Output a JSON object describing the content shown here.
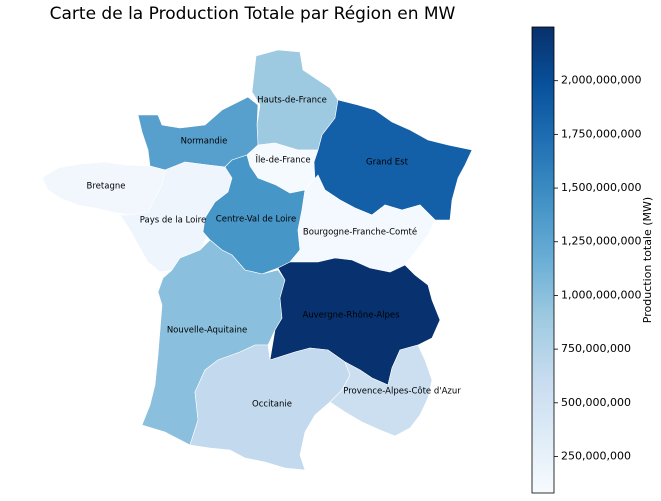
{
  "title": "Carte de la Production Totale par Région en MW",
  "colorbar": {
    "label": "Production totale (MW)",
    "min": 80000000,
    "max": 2250000000,
    "colormap": "Blues",
    "ticks": [
      {
        "value": 250000000,
        "label": "250,000,000"
      },
      {
        "value": 500000000,
        "label": "500,000,000"
      },
      {
        "value": 750000000,
        "label": "750,000,000"
      },
      {
        "value": 1000000000,
        "label": "1,000,000,000"
      },
      {
        "value": 1250000000,
        "label": "1,250,000,000"
      },
      {
        "value": 1500000000,
        "label": "1,500,000,000"
      },
      {
        "value": 1750000000,
        "label": "1,750,000,000"
      },
      {
        "value": 2000000000,
        "label": "2,000,000,000"
      }
    ]
  },
  "regions": [
    {
      "id": "hauts-de-france",
      "label": "Hauts-de-France",
      "value": 900000000
    },
    {
      "id": "normandie",
      "label": "Normandie",
      "value": 1300000000
    },
    {
      "id": "ile-de-france",
      "label": "Île-de-France",
      "value": 100000000
    },
    {
      "id": "grand-est",
      "label": "Grand Est",
      "value": 1850000000
    },
    {
      "id": "bretagne",
      "label": "Bretagne",
      "value": 150000000
    },
    {
      "id": "pays-de-la-loire",
      "label": "Pays de la Loire",
      "value": 180000000
    },
    {
      "id": "centre-val-de-loire",
      "label": "Centre-Val de Loire",
      "value": 1400000000
    },
    {
      "id": "bourgogne-franche-comte",
      "label": "Bourgogne-Franche-Comté",
      "value": 120000000
    },
    {
      "id": "nouvelle-aquitaine",
      "label": "Nouvelle-Aquitaine",
      "value": 1000000000
    },
    {
      "id": "auvergne-rhone-alpes",
      "label": "Auvergne-Rhône-Alpes",
      "value": 2230000000
    },
    {
      "id": "occitanie",
      "label": "Occitanie",
      "value": 650000000
    },
    {
      "id": "provence-alpes-cote-dazur",
      "label": "Provence-Alpes-Côte d'Azur",
      "value": 550000000
    }
  ]
}
